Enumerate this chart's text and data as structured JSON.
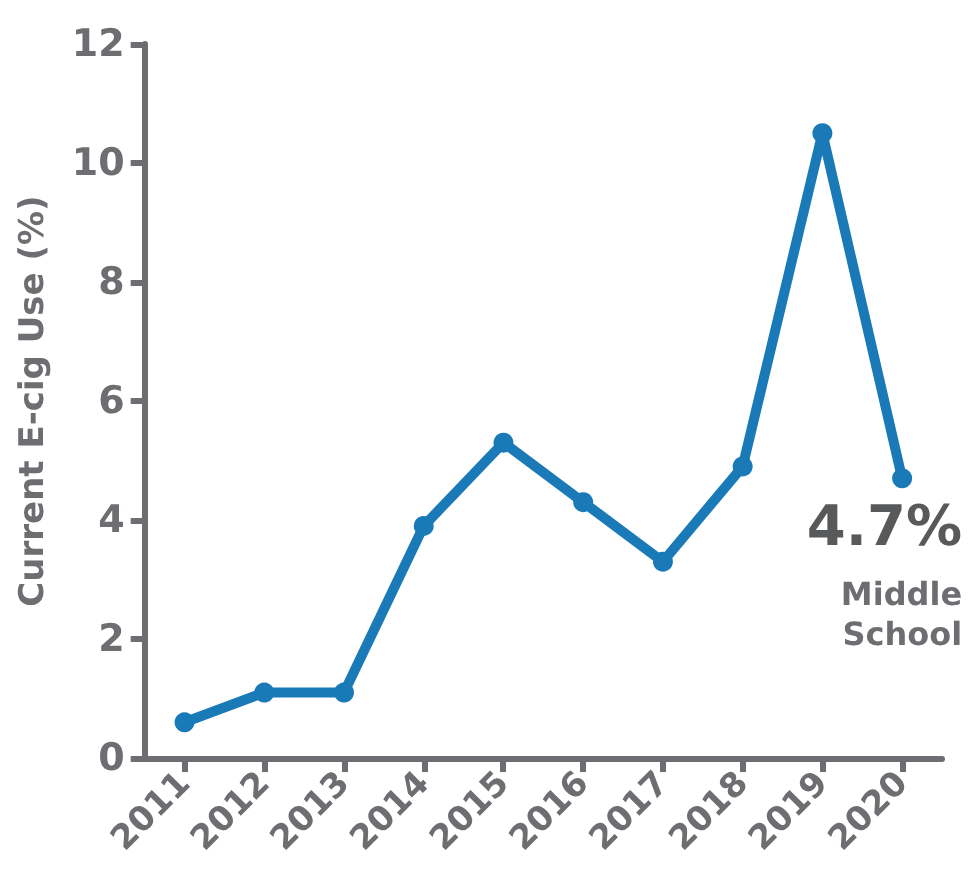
{
  "chart_data": {
    "type": "line",
    "ylabel": "Current E-cig Use (%)",
    "categories": [
      "2011",
      "2012",
      "2013",
      "2014",
      "2015",
      "2016",
      "2017",
      "2018",
      "2019",
      "2020"
    ],
    "series": [
      {
        "color": "#1a7ab8",
        "values": [
          0.6,
          1.1,
          1.1,
          3.9,
          5.3,
          4.3,
          3.3,
          4.9,
          10.5,
          4.7
        ]
      }
    ],
    "ylim": [
      0,
      12
    ],
    "yticks": [
      0,
      2,
      4,
      6,
      8,
      10,
      12
    ],
    "grid": false,
    "marker": "circle",
    "line_style": "solid",
    "annotations": [
      {
        "text": "4.7%",
        "x": "2020",
        "y": 4.7
      },
      "Middle School"
    ]
  }
}
